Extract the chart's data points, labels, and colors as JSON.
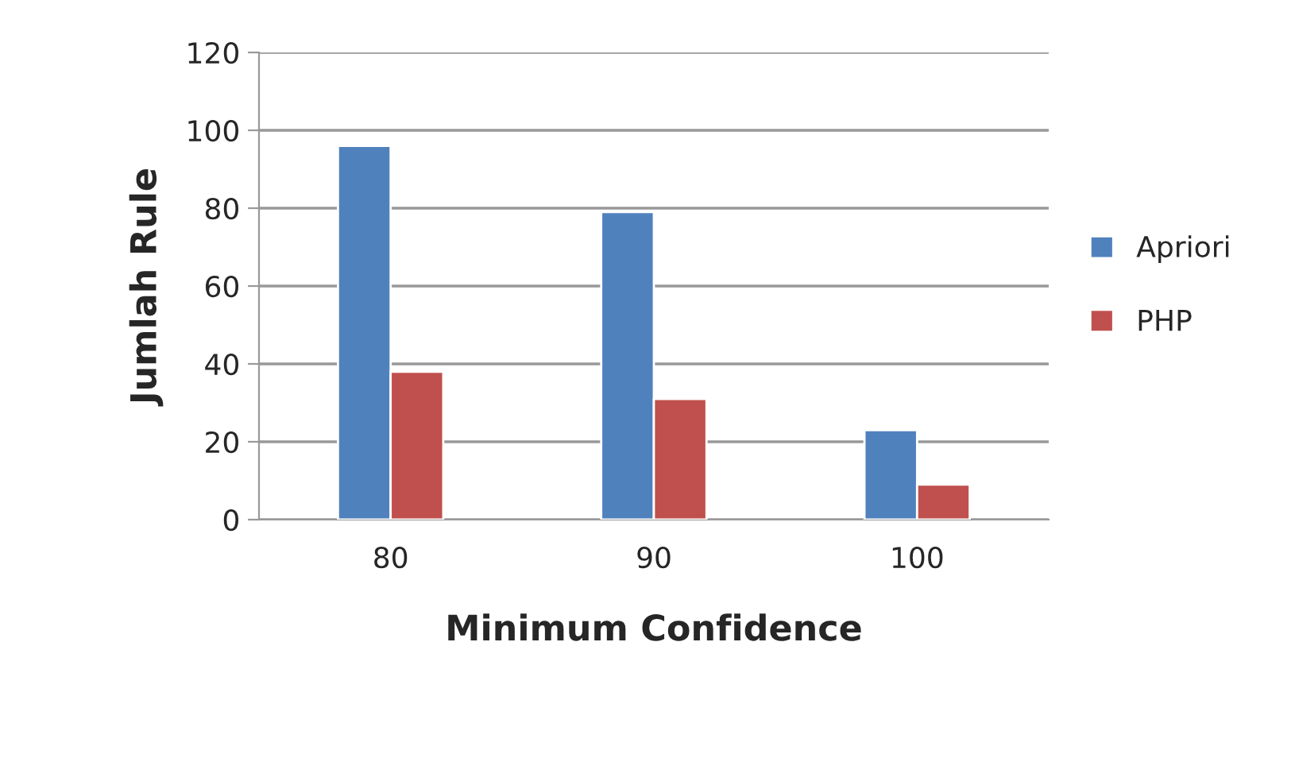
{
  "chart_data": {
    "type": "bar",
    "xlabel": "Minimum Confidence",
    "ylabel": "Jumlah Rule",
    "categories": [
      "80",
      "90",
      "100"
    ],
    "series": [
      {
        "name": "Apriori",
        "color": "#4f81bd",
        "values": [
          96,
          79,
          23
        ]
      },
      {
        "name": "PHP",
        "color": "#c0504d",
        "values": [
          38,
          31,
          9
        ]
      }
    ],
    "ylim": [
      0,
      120
    ],
    "yticks": [
      0,
      20,
      40,
      60,
      80,
      100,
      120
    ],
    "grid": "y",
    "legend": "right"
  }
}
